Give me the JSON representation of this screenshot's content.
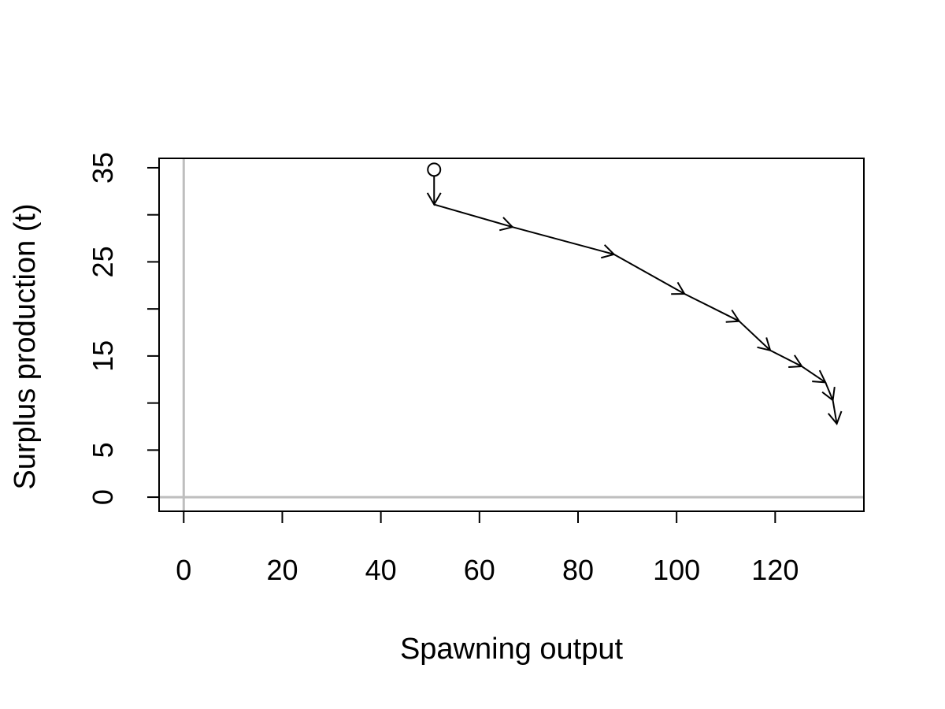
{
  "chart_data": {
    "type": "line",
    "title": "",
    "xlabel": "Spawning output",
    "ylabel": "Surplus production (t)",
    "xlim": [
      -5,
      138
    ],
    "ylim": [
      -1.5,
      36
    ],
    "x_ticks": [
      0,
      20,
      40,
      60,
      80,
      100,
      120
    ],
    "x_tick_labels": [
      "0",
      "20",
      "40",
      "60",
      "80",
      "100",
      "120"
    ],
    "y_ticks": [
      0,
      5,
      10,
      15,
      20,
      25,
      30,
      35
    ],
    "y_tick_labels": [
      "0",
      "5",
      "",
      "15",
      "",
      "25",
      "",
      "35"
    ],
    "reference_lines": {
      "x": 0,
      "y": 0,
      "color": "#bebebe"
    },
    "start_marker": "open-circle",
    "series": [
      {
        "x": [
          50.8,
          50.8,
          66.7,
          87.3,
          101.6,
          112.7,
          119.0,
          125.4,
          130.2,
          131.7,
          132.5
        ],
        "y": [
          34.8,
          31.1,
          28.7,
          25.8,
          21.6,
          18.7,
          15.6,
          13.9,
          12.2,
          10.3,
          7.8
        ],
        "color": "#000000",
        "arrows": true
      }
    ],
    "grid": false
  }
}
